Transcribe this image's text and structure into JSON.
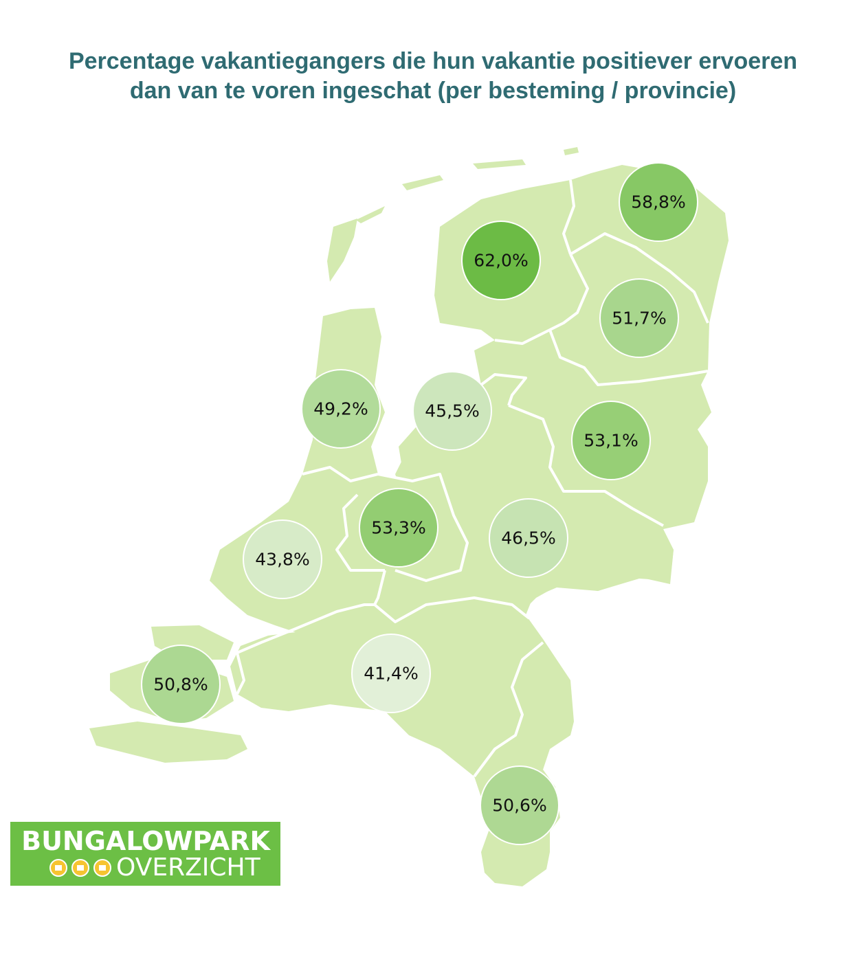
{
  "title": {
    "line1": "Percentage vakantiegangers die hun vakantie positiever ervoeren",
    "line2": "dan van te voren ingeschat (per besteming / provincie)"
  },
  "colors": {
    "land": "#d4eab0",
    "border": "#ffffff",
    "title": "#2f6b72",
    "logo_bg": "#6cbf45",
    "logo_dot": "#f6c431"
  },
  "map_data": {
    "type": "choropleth-bubbles",
    "region": "Nederland",
    "provinces": [
      {
        "label": "62,0%",
        "value": 62.0,
        "color": "#6cbb45"
      },
      {
        "label": "58,8%",
        "value": 58.8,
        "color": "#87c865"
      },
      {
        "label": "51,7%",
        "value": 51.7,
        "color": "#a8d68d"
      },
      {
        "label": "49,2%",
        "value": 49.2,
        "color": "#b2db9a"
      },
      {
        "label": "45,5%",
        "value": 45.5,
        "color": "#cde6bc"
      },
      {
        "label": "53,1%",
        "value": 53.1,
        "color": "#97cf76"
      },
      {
        "label": "53,3%",
        "value": 53.3,
        "color": "#93cd72"
      },
      {
        "label": "46,5%",
        "value": 46.5,
        "color": "#c6e3b2"
      },
      {
        "label": "43,8%",
        "value": 43.8,
        "color": "#d7ebc8"
      },
      {
        "label": "50,8%",
        "value": 50.8,
        "color": "#acd892"
      },
      {
        "label": "41,4%",
        "value": 41.4,
        "color": "#e2f0d8"
      },
      {
        "label": "50,6%",
        "value": 50.6,
        "color": "#aed893"
      }
    ]
  },
  "logo": {
    "line1": "BUNGALOWPARK",
    "line2": "OVERZICHT"
  }
}
